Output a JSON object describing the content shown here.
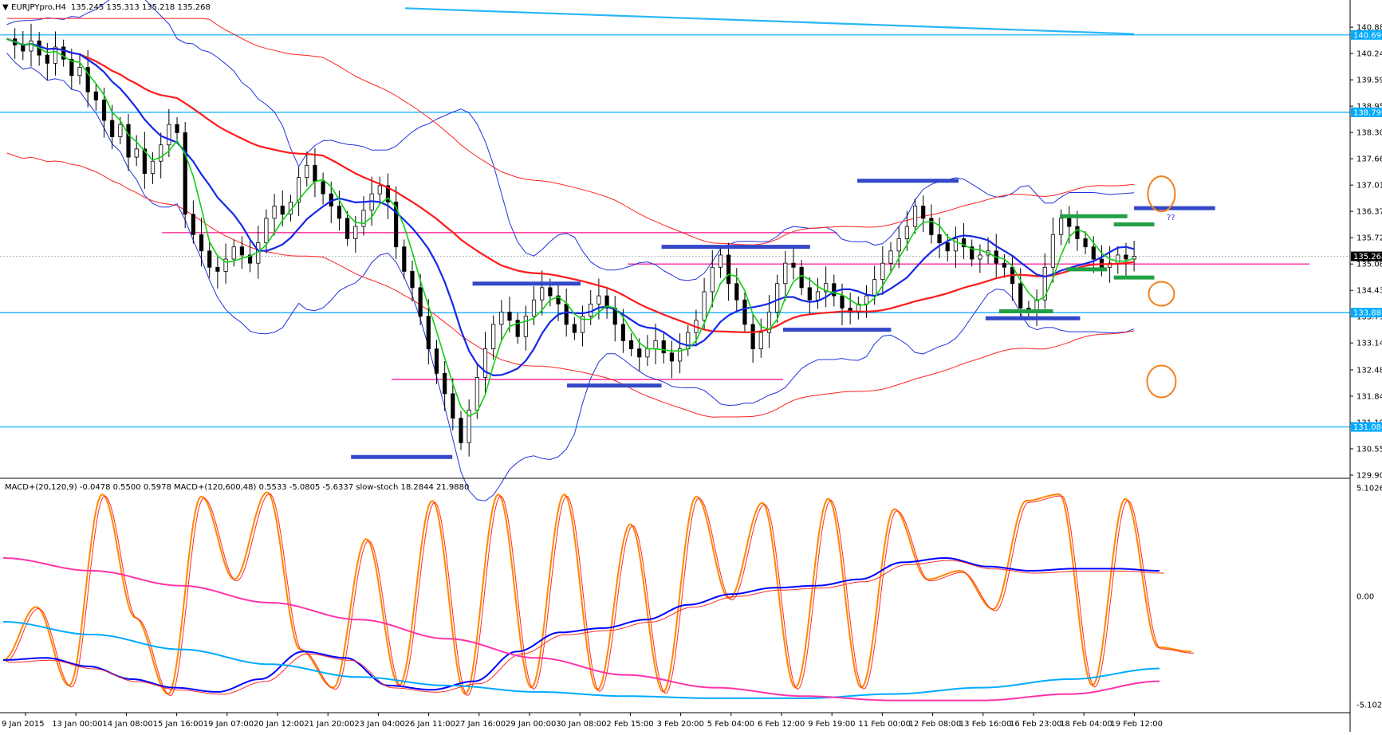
{
  "window": {
    "symbol_caption": "EURJPYpro,H4",
    "ohlc_caption": "135.245 135.313 135.218 135.268"
  },
  "chart_data": [
    {
      "type": "candlestick",
      "symbol": "EURJPYpro",
      "timeframe": "H4",
      "ylim": [
        129.905,
        141.2
      ],
      "y_ticks": [
        "140.885",
        "140.240",
        "139.595",
        "138.950",
        "138.305",
        "137.660",
        "137.015",
        "136.370",
        "135.725",
        "135.080",
        "134.435",
        "133.790",
        "133.145",
        "132.485",
        "131.840",
        "131.195",
        "130.550",
        "129.905"
      ],
      "current_price_label": "135.268",
      "horizontal_levels": [
        {
          "value": 140.696,
          "label": "140.696",
          "color": "#00aaff"
        },
        {
          "value": 138.799,
          "label": "138.799",
          "color": "#00aaff"
        },
        {
          "value": 133.887,
          "label": "133.887",
          "color": "#00aaff"
        },
        {
          "value": 131.086,
          "label": "131.086",
          "color": "#00aaff"
        }
      ],
      "pink_levels": [
        {
          "value": 135.85,
          "from": 0.12,
          "to": 0.62
        },
        {
          "value": 135.08,
          "from": 0.465,
          "to": 0.97
        },
        {
          "value": 132.25,
          "from": 0.29,
          "to": 0.58
        }
      ],
      "blue_zone_marks": [
        {
          "value": 137.12,
          "from": 0.635,
          "to": 0.71
        },
        {
          "value": 135.5,
          "from": 0.49,
          "to": 0.6
        },
        {
          "value": 134.6,
          "from": 0.35,
          "to": 0.43
        },
        {
          "value": 133.47,
          "from": 0.58,
          "to": 0.66
        },
        {
          "value": 132.1,
          "from": 0.42,
          "to": 0.49
        },
        {
          "value": 130.35,
          "from": 0.26,
          "to": 0.335
        },
        {
          "value": 136.45,
          "from": 0.84,
          "to": 0.9
        },
        {
          "value": 133.75,
          "from": 0.73,
          "to": 0.8
        }
      ],
      "green_zone_marks": [
        {
          "value": 136.25,
          "from": 0.785,
          "to": 0.835
        },
        {
          "value": 136.05,
          "from": 0.825,
          "to": 0.855
        },
        {
          "value": 134.95,
          "from": 0.79,
          "to": 0.82
        },
        {
          "value": 134.75,
          "from": 0.825,
          "to": 0.855
        },
        {
          "value": 133.92,
          "from": 0.74,
          "to": 0.78
        }
      ],
      "annotation_text": "??",
      "x_tick_labels": [
        "9 Jan 2015",
        "13 Jan 00:00",
        "14 Jan 08:00",
        "15 Jan 16:00",
        "19 Jan 07:00",
        "20 Jan 12:00",
        "21 Jan 20:00",
        "23 Jan 04:00",
        "26 Jan 11:00",
        "27 Jan 16:00",
        "29 Jan 00:00",
        "30 Jan 08:00",
        "2 Feb 15:00",
        "3 Feb 20:00",
        "5 Feb 04:00",
        "6 Feb 12:00",
        "9 Feb 19:00",
        "11 Feb 00:00",
        "12 Feb 08:00",
        "13 Feb 16:00",
        "16 Feb 23:00",
        "18 Feb 04:00",
        "19 Feb 12:00"
      ],
      "price_path": [
        140.6,
        140.45,
        140.3,
        140.55,
        140.2,
        140.0,
        140.4,
        140.1,
        139.7,
        139.9,
        139.3,
        139.1,
        138.6,
        138.2,
        138.5,
        137.7,
        137.9,
        137.3,
        137.6,
        138.0,
        138.5,
        138.3,
        136.3,
        135.8,
        135.4,
        135.0,
        134.9,
        135.2,
        135.5,
        135.3,
        135.1,
        135.6,
        136.2,
        136.5,
        136.3,
        136.6,
        137.2,
        137.5,
        137.1,
        136.8,
        136.5,
        136.2,
        135.7,
        136.0,
        136.4,
        136.8,
        137.0,
        136.6,
        135.5,
        134.9,
        134.5,
        133.8,
        133.0,
        132.4,
        131.9,
        131.3,
        130.7,
        131.5,
        132.3,
        133.0,
        133.6,
        133.9,
        133.7,
        133.3,
        133.8,
        134.2,
        134.5,
        134.3,
        134.1,
        133.6,
        133.4,
        133.8,
        134.1,
        134.3,
        134.0,
        133.6,
        133.2,
        133.0,
        132.8,
        133.0,
        133.2,
        132.9,
        132.7,
        133.0,
        133.4,
        133.7,
        134.4,
        135.0,
        135.3,
        134.6,
        134.2,
        133.6,
        133.0,
        133.4,
        133.9,
        134.6,
        135.1,
        135.0,
        134.5,
        134.2,
        134.4,
        134.6,
        134.3,
        134.0,
        133.9,
        134.1,
        134.3,
        134.7,
        135.1,
        135.4,
        135.7,
        136.0,
        136.5,
        136.2,
        135.8,
        135.6,
        135.4,
        135.7,
        135.5,
        135.2,
        135.3,
        135.4,
        135.1,
        135.0,
        134.6,
        134.0,
        133.9,
        134.2,
        135.0,
        135.8,
        136.2,
        136.0,
        135.7,
        135.5,
        135.2,
        135.0,
        135.1,
        135.3,
        135.2,
        135.27
      ],
      "overlays": [
        {
          "name": "fast-ma",
          "color": "#00e000"
        },
        {
          "name": "slow-ma",
          "color": "#0000ff"
        },
        {
          "name": "long-ma",
          "color": "#ff0000"
        },
        {
          "name": "bollinger",
          "color": "#0000ff"
        },
        {
          "name": "envelope",
          "color": "#ff0000"
        },
        {
          "name": "trend-line",
          "color": "#00aaff"
        }
      ],
      "grid": false
    },
    {
      "type": "line",
      "panel": "oscillator",
      "caption": "MACD+(20,120,9) -0.0478 0.5500 0.5978  MACD+(120,600,48) 0.5533 -5.0805 -5.6337  slow-stoch 18.2844 21.9880",
      "y_ticks": [
        "5.1026",
        "0.00",
        "-5.1026"
      ],
      "ylim": [
        -5.1026,
        5.1026
      ],
      "series": [
        {
          "color": "#ff8800",
          "values": [
            -3.0,
            -0.5,
            -4.2,
            4.8,
            -1.0,
            -4.6,
            4.7,
            0.8,
            4.9,
            -2.5,
            -4.3,
            2.7,
            -4.2,
            4.5,
            -4.6,
            4.8,
            -4.3,
            4.8,
            -4.4,
            3.4,
            -4.5,
            4.7,
            -0.1,
            4.4,
            -4.3,
            4.6,
            -4.3,
            4.1,
            0.8,
            1.2,
            -0.6,
            4.5,
            4.8,
            -4.2,
            4.6,
            -2.4,
            -2.6
          ]
        },
        {
          "color": "#0000ff",
          "values": [
            -3.0,
            -2.9,
            -3.3,
            -3.9,
            -4.3,
            -4.5,
            -3.9,
            -2.6,
            -2.9,
            -4.2,
            -4.4,
            -4.0,
            -2.6,
            -1.7,
            -1.5,
            -1.1,
            -0.4,
            0.1,
            0.4,
            0.5,
            0.8,
            1.6,
            1.8,
            1.4,
            1.2,
            1.3,
            1.3,
            1.2
          ]
        },
        {
          "color": "#00aaff",
          "values": [
            -1.2,
            -1.8,
            -2.5,
            -3.2,
            -3.8,
            -4.2,
            -4.5,
            -4.7,
            -4.8,
            -4.8,
            -4.6,
            -4.3,
            -3.9,
            -3.4
          ]
        },
        {
          "color": "#ff33aa",
          "values": [
            1.8,
            1.2,
            0.5,
            -0.3,
            -1.1,
            -2.0,
            -2.9,
            -3.7,
            -4.3,
            -4.7,
            -4.9,
            -4.9,
            -4.6,
            -4.0
          ]
        }
      ]
    }
  ]
}
